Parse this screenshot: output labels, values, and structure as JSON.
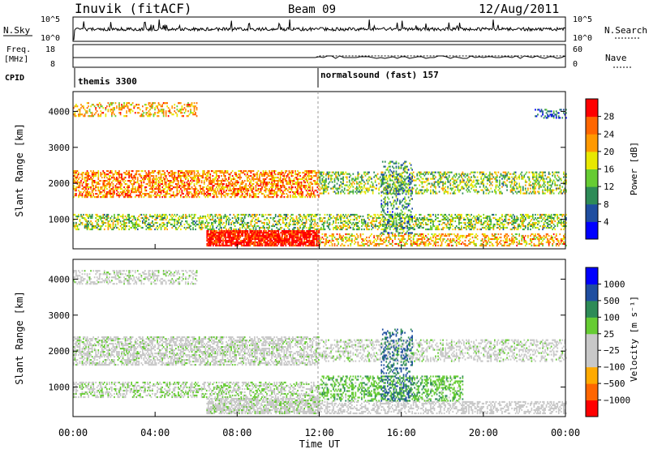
{
  "header": {
    "station": "Inuvik (fitACF)",
    "beam": "Beam 09",
    "date": "12/Aug/2011"
  },
  "noise_panel": {
    "left_label": "N.Sky",
    "left_ticks": [
      "10^5",
      "10^0"
    ],
    "right_label": "N.Search",
    "right_ticks": [
      "10^5",
      "10^0"
    ]
  },
  "freq_panel": {
    "left_label_1": "Freq.",
    "left_label_2": "[MHz]",
    "left_ticks": [
      "18",
      "8"
    ],
    "right_label": "Nave",
    "right_ticks": [
      "60",
      "0"
    ]
  },
  "cpid": {
    "label": "CPID",
    "segments": [
      {
        "name": "themis 3300",
        "start_hour": 0
      },
      {
        "name": "normalsound (fast) 157",
        "start_hour": 12
      }
    ]
  },
  "colors": {
    "power_scale": [
      "#0000ff",
      "#1f4ea0",
      "#2e8b57",
      "#66cc33",
      "#e8e800",
      "#ff9900",
      "#ff6600",
      "#ff0000"
    ],
    "velocity_scale": [
      "#ff0000",
      "#ff6600",
      "#ffaa00",
      "#c8c8c8",
      "#c8c8c8",
      "#66cc33",
      "#2e8b57",
      "#1f4ea0",
      "#0000ff"
    ],
    "ground_scatter": "#bebebe"
  },
  "chart_data": [
    {
      "type": "heatmap",
      "title": "",
      "xlabel": "",
      "ylabel": "Slant Range [km]",
      "xlim_hours": [
        0,
        24
      ],
      "ylim": [
        180,
        4550
      ],
      "y_ticks": [
        "1000",
        "2000",
        "3000",
        "4000"
      ],
      "colorbar_label": "Power [dB]",
      "colorbar_ticks": [
        "4",
        "8",
        "12",
        "16",
        "20",
        "24",
        "28"
      ],
      "colorbar_range": [
        0,
        30
      ],
      "bands": [
        {
          "t0": 0.0,
          "t1": 6.0,
          "r0": 3850,
          "r1": 4250,
          "value": 20,
          "density": 0.35
        },
        {
          "t0": 0.0,
          "t1": 12.0,
          "r0": 1600,
          "r1": 2350,
          "value": 22,
          "density": 0.55
        },
        {
          "t0": 12.0,
          "t1": 24.0,
          "r0": 1700,
          "r1": 2300,
          "value": 14,
          "density": 0.4
        },
        {
          "t0": 0.0,
          "t1": 24.0,
          "r0": 700,
          "r1": 1150,
          "value": 14,
          "density": 0.45
        },
        {
          "t0": 6.5,
          "t1": 12.0,
          "r0": 250,
          "r1": 700,
          "value": 29,
          "density": 0.85
        },
        {
          "t0": 12.0,
          "t1": 24.0,
          "r0": 250,
          "r1": 600,
          "value": 20,
          "density": 0.45
        },
        {
          "t0": 15.0,
          "t1": 16.5,
          "r0": 600,
          "r1": 2600,
          "value": 10,
          "density": 0.3
        },
        {
          "t0": 22.5,
          "t1": 24.0,
          "r0": 3800,
          "r1": 4050,
          "value": 6,
          "density": 0.35
        }
      ]
    },
    {
      "type": "heatmap",
      "title": "",
      "xlabel": "Time UT",
      "ylabel": "Slant Range [km]",
      "xlim_hours": [
        0,
        24
      ],
      "ylim": [
        180,
        4550
      ],
      "x_ticks": [
        "00:00",
        "04:00",
        "08:00",
        "12:00",
        "16:00",
        "20:00",
        "00:00"
      ],
      "y_ticks": [
        "1000",
        "2000",
        "3000",
        "4000"
      ],
      "colorbar_label": "Velocity [m s⁻¹]",
      "colorbar_ticks": [
        "1000",
        "500",
        "100",
        "25",
        "−25",
        "−100",
        "−500",
        "−1000"
      ],
      "colorbar_range": [
        -1200,
        1200
      ],
      "bands": [
        {
          "t0": 0.0,
          "t1": 6.0,
          "r0": 3850,
          "r1": 4250,
          "value": 0,
          "density": 0.4
        },
        {
          "t0": 0.0,
          "t1": 12.0,
          "r0": 1600,
          "r1": 2400,
          "value": 0,
          "density": 0.55
        },
        {
          "t0": 12.0,
          "t1": 24.0,
          "r0": 1700,
          "r1": 2300,
          "value": 0,
          "density": 0.35
        },
        {
          "t0": 0.0,
          "t1": 12.0,
          "r0": 700,
          "r1": 1150,
          "value": 90,
          "density": 0.45
        },
        {
          "t0": 12.0,
          "t1": 19.0,
          "r0": 600,
          "r1": 1300,
          "value": 300,
          "density": 0.4
        },
        {
          "t0": 6.5,
          "t1": 12.0,
          "r0": 250,
          "r1": 700,
          "value": 0,
          "density": 0.75
        },
        {
          "t0": 12.0,
          "t1": 24.0,
          "r0": 250,
          "r1": 600,
          "value": -150,
          "density": 0.45
        },
        {
          "t0": 15.0,
          "t1": 16.5,
          "r0": 600,
          "r1": 2600,
          "value": 700,
          "density": 0.3
        }
      ]
    }
  ]
}
